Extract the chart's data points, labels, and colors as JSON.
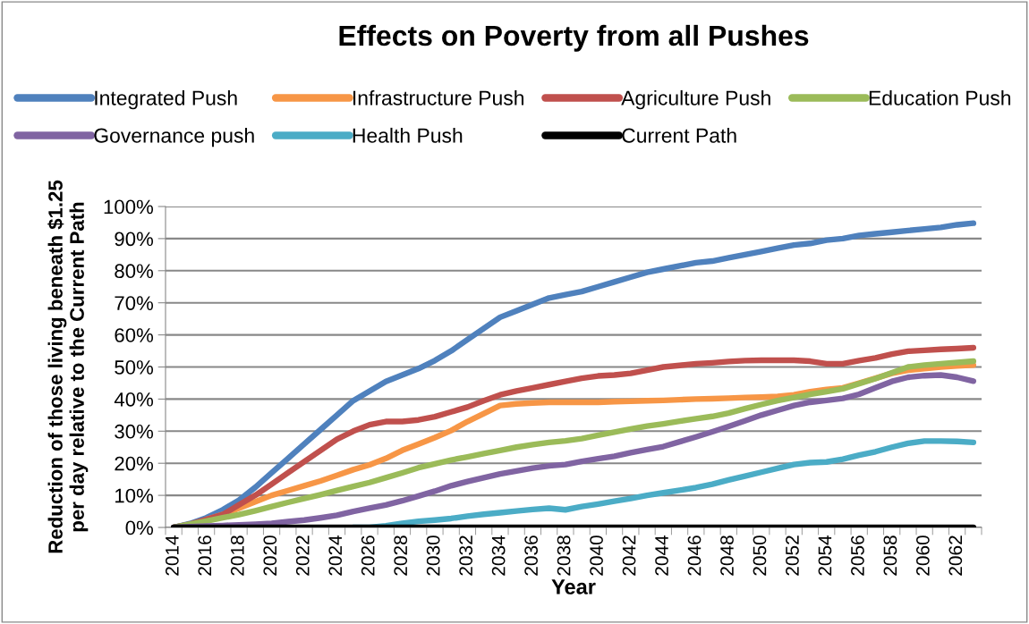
{
  "chart_data": {
    "type": "line",
    "title": "Effects on Poverty from all Pushes",
    "xlabel": "Year",
    "ylabel": "Reduction of those living beneath $1.25\nper day relative to the Current Path",
    "categories": [
      "2014",
      null,
      "2016",
      null,
      "2018",
      null,
      "2020",
      null,
      "2022",
      null,
      "2024",
      null,
      "2026",
      null,
      "2028",
      null,
      "2030",
      null,
      "2032",
      null,
      "2034",
      null,
      "2036",
      null,
      "2038",
      null,
      "2040",
      null,
      "2042",
      null,
      "2044",
      null,
      "2046",
      null,
      "2048",
      null,
      "2050",
      null,
      "2052",
      null,
      "2054",
      null,
      "2056",
      null,
      "2058",
      null,
      "2060",
      null,
      "2062",
      null
    ],
    "series": [
      {
        "name": "Integrated Push",
        "color": "#4f81bd",
        "values": [
          0,
          1.2,
          3,
          5.5,
          8.5,
          12.5,
          17,
          21.5,
          26,
          30.5,
          35,
          39.5,
          42.5,
          45.5,
          47.5,
          49.5,
          52,
          55,
          58.5,
          62,
          65.5,
          67.5,
          69.5,
          71.5,
          72.5,
          73.5,
          75,
          76.5,
          78,
          79.5,
          80.5,
          81.5,
          82.5,
          83,
          84,
          85,
          86,
          87,
          88,
          88.5,
          89.5,
          90,
          91,
          91.5,
          92,
          92.5,
          93,
          93.5,
          94.3,
          94.8
        ]
      },
      {
        "name": "Infrastructure Push",
        "color": "#f79646",
        "values": [
          null,
          null,
          2.5,
          4,
          6,
          8,
          10,
          11.5,
          13,
          14.5,
          16.2,
          18,
          19.5,
          21.5,
          24,
          26,
          28,
          30.2,
          33,
          35.5,
          38,
          38.5,
          38.8,
          39,
          39,
          39,
          39,
          39.2,
          39.3,
          39.5,
          39.6,
          39.8,
          40,
          40.1,
          40.3,
          40.5,
          40.6,
          40.8,
          41.3,
          42.3,
          43,
          43.5,
          45,
          46.5,
          48,
          49,
          49.5,
          50,
          50.3,
          50.6
        ]
      },
      {
        "name": "Agriculture Push",
        "color": "#c0504d",
        "values": [
          0,
          1,
          2.5,
          4,
          7,
          10,
          13.5,
          17,
          20.5,
          24,
          27.5,
          30,
          32,
          33,
          33,
          33.5,
          34.5,
          36,
          37.5,
          39.5,
          41.3,
          42.5,
          43.5,
          44.5,
          45.5,
          46.5,
          47.2,
          47.5,
          48,
          49,
          50,
          50.5,
          51,
          51.3,
          51.7,
          52,
          52.1,
          52.1,
          52.1,
          51.8,
          51,
          51,
          52,
          52.8,
          54,
          54.9,
          55.2,
          55.5,
          55.7,
          56
        ]
      },
      {
        "name": "Education Push",
        "color": "#9bbb59",
        "values": [
          0,
          1,
          2,
          3,
          4,
          5.2,
          6.5,
          7.8,
          9,
          10.2,
          11.5,
          12.8,
          14,
          15.5,
          17,
          18.6,
          19.8,
          21,
          22,
          23,
          24,
          25,
          25.8,
          26.5,
          27,
          27.7,
          28.7,
          29.7,
          30.7,
          31.6,
          32.3,
          33.1,
          33.9,
          34.6,
          35.6,
          37,
          38.3,
          39.5,
          40.5,
          41.5,
          42.3,
          43.2,
          44.8,
          46.4,
          48.2,
          50,
          50.6,
          51,
          51.4,
          51.8
        ]
      },
      {
        "name": "Governance push",
        "color": "#8064a2",
        "values": [
          0,
          0.2,
          0.4,
          0.6,
          0.8,
          1,
          1.3,
          1.8,
          2.3,
          3,
          3.8,
          5,
          6,
          7,
          8.3,
          9.8,
          11.3,
          13,
          14.3,
          15.5,
          16.7,
          17.6,
          18.5,
          19.2,
          19.6,
          20.6,
          21.4,
          22.2,
          23.3,
          24.3,
          25.2,
          26.7,
          28.2,
          29.8,
          31.5,
          33.2,
          35,
          36.5,
          38,
          39,
          39.6,
          40.2,
          41.5,
          43.5,
          45.5,
          46.8,
          47.3,
          47.5,
          46.8,
          45.6
        ]
      },
      {
        "name": "Health Push",
        "color": "#4bacc6",
        "values": [
          null,
          null,
          null,
          null,
          null,
          null,
          null,
          null,
          null,
          null,
          null,
          0,
          0,
          0.5,
          1.3,
          1.9,
          2.3,
          2.8,
          3.5,
          4.1,
          4.6,
          5.1,
          5.6,
          6,
          5.5,
          6.5,
          7.3,
          8.2,
          9,
          10,
          10.8,
          11.6,
          12.4,
          13.5,
          14.8,
          16,
          17.2,
          18.4,
          19.6,
          20.2,
          20.4,
          21.3,
          22.5,
          23.6,
          25,
          26.2,
          26.9,
          26.9,
          26.8,
          26.5
        ]
      },
      {
        "name": "Current Path",
        "color": "#000000",
        "values": [
          0,
          0,
          0,
          0,
          0,
          0,
          0,
          0,
          0,
          0,
          0,
          0,
          0,
          0,
          0,
          0,
          0,
          0,
          0,
          0,
          0,
          0,
          0,
          0,
          0,
          0,
          0,
          0,
          0,
          0,
          0,
          0,
          0,
          0,
          0,
          0,
          0,
          0,
          0,
          0,
          0,
          0,
          0,
          0,
          0,
          0,
          0,
          0,
          0,
          0
        ]
      }
    ],
    "ylim": [
      0,
      100
    ],
    "yticks": [
      {
        "value": 0,
        "label": "0%"
      },
      {
        "value": 10,
        "label": "10%"
      },
      {
        "value": 20,
        "label": "20%"
      },
      {
        "value": 30,
        "label": "30%"
      },
      {
        "value": 40,
        "label": "40%"
      },
      {
        "value": 50,
        "label": "50%"
      },
      {
        "value": 60,
        "label": "60%"
      },
      {
        "value": 70,
        "label": "70%"
      },
      {
        "value": 80,
        "label": "80%"
      },
      {
        "value": 90,
        "label": "90%"
      },
      {
        "value": 100,
        "label": "100%"
      }
    ],
    "grid": "y",
    "legend": "top",
    "marker": "none",
    "line_style": "solid"
  }
}
